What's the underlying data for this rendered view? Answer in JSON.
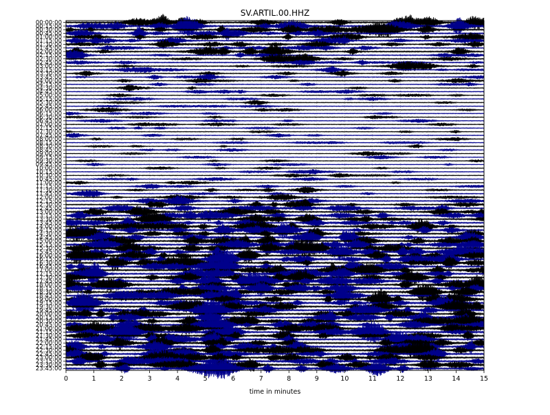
{
  "chart_data": {
    "type": "line",
    "title": "SV.ARTIL.00.HHZ",
    "xlabel": "time in minutes",
    "ylabel": "",
    "x_ticks": [
      "0",
      "1",
      "2",
      "3",
      "4",
      "5",
      "6",
      "7",
      "8",
      "9",
      "10",
      "11",
      "12",
      "13",
      "14",
      "15"
    ],
    "xlim": [
      0,
      15
    ],
    "y_tick_labels": [
      "00:00:00",
      "00:15:00",
      "00:30:00",
      "00:45:00",
      "01:00:00",
      "01:15:00",
      "01:30:00",
      "01:45:00",
      "02:00:00",
      "02:15:00",
      "02:30:00",
      "02:45:00",
      "03:00:00",
      "03:15:00",
      "03:30:00",
      "03:45:00",
      "04:00:00",
      "04:15:00",
      "04:30:00",
      "04:45:00",
      "05:00:00",
      "05:15:00",
      "05:30:00",
      "05:45:00",
      "06:00:00",
      "06:15:00",
      "06:30:00",
      "06:45:00",
      "07:00:00",
      "07:15:00",
      "07:30:00",
      "07:45:00",
      "08:00:00",
      "08:15:00",
      "08:30:00",
      "08:45:00",
      "09:00:00",
      "09:15:00",
      "09:30:00",
      "09:45:00",
      "10:00:00",
      "10:15:00",
      "10:30:00",
      "10:45:00",
      "11:00:00",
      "11:15:00",
      "11:30:00",
      "11:45:00",
      "12:00:00",
      "12:15:00",
      "12:30:00",
      "12:45:00",
      "13:00:00",
      "13:15:00",
      "13:30:00",
      "13:45:00",
      "14:00:00",
      "14:15:00",
      "14:30:00",
      "14:45:00",
      "15:00:00",
      "15:15:00",
      "15:30:00",
      "15:45:00",
      "16:00:00",
      "16:15:00",
      "16:30:00",
      "16:45:00",
      "17:00:00",
      "17:15:00",
      "17:30:00",
      "17:45:00",
      "18:00:00",
      "18:15:00",
      "18:30:00",
      "18:45:00",
      "19:00:00",
      "19:15:00",
      "19:30:00",
      "19:45:00",
      "20:00:00",
      "20:15:00",
      "20:30:00",
      "20:45:00",
      "21:00:00",
      "21:15:00",
      "21:30:00",
      "21:45:00",
      "22:00:00",
      "22:15:00",
      "22:30:00",
      "22:45:00",
      "23:00:00",
      "23:15:00",
      "23:30:00",
      "23:45:00"
    ],
    "trace_colors": [
      "#000000",
      "#00008b"
    ],
    "grid": "vertical dotted",
    "activity_per_trace": [
      0.9,
      0.9,
      0.8,
      0.7,
      0.6,
      0.6,
      0.5,
      0.4,
      0.7,
      0.4,
      0.5,
      0.4,
      0.4,
      0.3,
      0.3,
      0.3,
      0.3,
      0.2,
      0.2,
      0.2,
      0.15,
      0.15,
      0.15,
      0.15,
      0.15,
      0.15,
      0.15,
      0.15,
      0.2,
      0.15,
      0.15,
      0.15,
      0.15,
      0.15,
      0.15,
      0.1,
      0.1,
      0.1,
      0.1,
      0.1,
      0.1,
      0.15,
      0.15,
      0.15,
      0.2,
      0.25,
      0.3,
      0.3,
      0.4,
      0.45,
      0.55,
      0.6,
      0.7,
      0.7,
      0.75,
      0.75,
      0.8,
      0.8,
      0.8,
      0.8,
      0.85,
      0.85,
      0.9,
      0.9,
      0.9,
      0.9,
      0.9,
      0.9,
      0.9,
      0.9,
      0.9,
      0.9,
      0.9,
      0.9,
      0.9,
      0.9,
      0.9,
      0.9,
      0.9,
      0.9,
      0.85,
      0.85,
      0.85,
      0.85,
      0.85,
      0.85,
      0.85,
      0.85,
      0.85,
      0.9,
      0.9,
      0.9,
      0.9,
      0.9,
      0.9,
      0.9
    ]
  }
}
